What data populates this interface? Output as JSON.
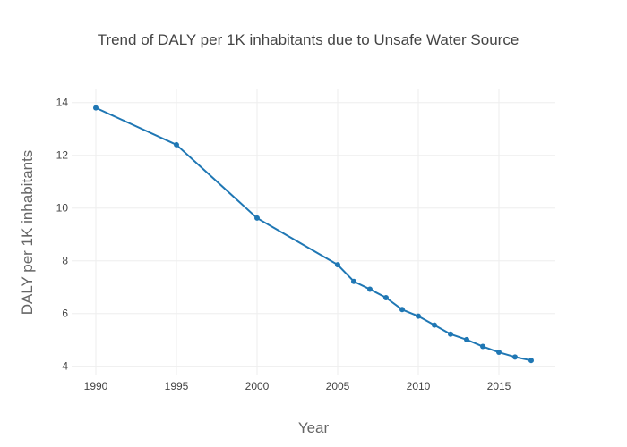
{
  "chart_data": {
    "type": "line",
    "title": "Trend of DALY per 1K inhabitants due to Unsafe Water Source",
    "xlabel": "Year",
    "ylabel": "DALY per 1K inhabitants",
    "xlim": [
      1988.5,
      2018.5
    ],
    "ylim": [
      3.65,
      14.5
    ],
    "grid": true,
    "legend": "none",
    "x_ticks": [
      1990,
      1995,
      2000,
      2005,
      2010,
      2015
    ],
    "y_ticks": [
      4,
      6,
      8,
      10,
      12,
      14
    ],
    "series": [
      {
        "color": "#1f77b4",
        "x": [
          1990,
          1995,
          2000,
          2005,
          2006,
          2007,
          2008,
          2009,
          2010,
          2011,
          2012,
          2013,
          2014,
          2015,
          2016,
          2017
        ],
        "y": [
          13.8,
          12.4,
          9.62,
          7.85,
          7.22,
          6.92,
          6.6,
          6.15,
          5.9,
          5.56,
          5.22,
          5.01,
          4.75,
          4.53,
          4.35,
          4.22
        ]
      }
    ]
  }
}
